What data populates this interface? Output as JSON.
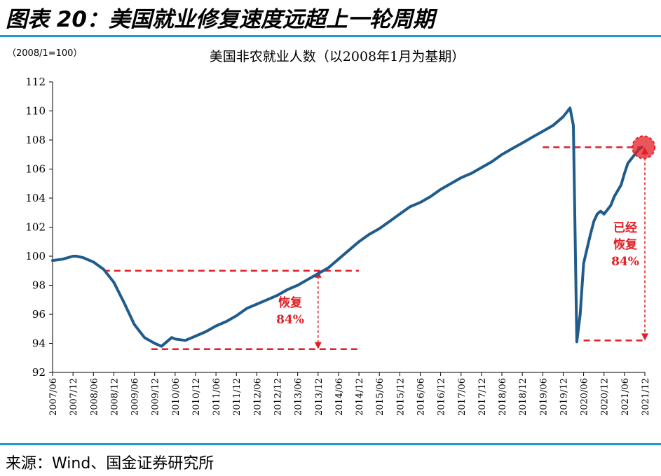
{
  "header": {
    "title": "图表 20：美国就业修复速度远超上一轮周期"
  },
  "colors": {
    "series": "#1f5c8c",
    "annotation": "#e11f26",
    "rule": "#1b9ad6"
  },
  "source": {
    "text": "来源：Wind、国金证券研究所"
  },
  "chart_data": {
    "type": "line",
    "title": "美国非农就业人数（以2008年1月为基期）",
    "unit_label": "（2008/1=100）",
    "xlabel": "",
    "ylabel": "",
    "ylim": [
      92,
      112
    ],
    "yticks": [
      92,
      94,
      96,
      98,
      100,
      102,
      104,
      106,
      108,
      110,
      112
    ],
    "xlim": [
      "2007/06",
      "2021/12"
    ],
    "xticks": [
      "2007/06",
      "2007/12",
      "2008/06",
      "2008/12",
      "2009/06",
      "2009/12",
      "2010/06",
      "2010/12",
      "2011/06",
      "2011/12",
      "2012/06",
      "2012/12",
      "2013/06",
      "2013/12",
      "2014/06",
      "2014/12",
      "2015/06",
      "2015/12",
      "2016/06",
      "2016/12",
      "2017/06",
      "2017/12",
      "2018/06",
      "2018/12",
      "2019/06",
      "2019/12",
      "2020/06",
      "2020/12",
      "2021/06",
      "2021/12"
    ],
    "grid": false,
    "series": [
      {
        "x": [
          "2007/06",
          "2007/09",
          "2007/12",
          "2008/01",
          "2008/03",
          "2008/06",
          "2008/09",
          "2008/12",
          "2009/03",
          "2009/06",
          "2009/09",
          "2009/12",
          "2010/02",
          "2010/05",
          "2010/06",
          "2010/09",
          "2010/12",
          "2011/03",
          "2011/06",
          "2011/09",
          "2011/12",
          "2012/03",
          "2012/06",
          "2012/09",
          "2012/12",
          "2013/03",
          "2013/06",
          "2013/09",
          "2013/12",
          "2014/03",
          "2014/06",
          "2014/09",
          "2014/12",
          "2015/03",
          "2015/06",
          "2015/09",
          "2015/12",
          "2016/03",
          "2016/06",
          "2016/09",
          "2016/12",
          "2017/03",
          "2017/06",
          "2017/09",
          "2017/12",
          "2018/03",
          "2018/06",
          "2018/09",
          "2018/12",
          "2019/03",
          "2019/06",
          "2019/09",
          "2019/12",
          "2020/02",
          "2020/03",
          "2020/04",
          "2020/05",
          "2020/06",
          "2020/07",
          "2020/08",
          "2020/09",
          "2020/10",
          "2020/11",
          "2020/12",
          "2021/01",
          "2021/02",
          "2021/03",
          "2021/04",
          "2021/05",
          "2021/06",
          "2021/07",
          "2021/08",
          "2021/09",
          "2021/10",
          "2021/11"
        ],
        "values": [
          99.7,
          99.8,
          100.0,
          100.0,
          99.9,
          99.6,
          99.1,
          98.2,
          96.8,
          95.3,
          94.4,
          94.0,
          93.8,
          94.4,
          94.3,
          94.2,
          94.5,
          94.8,
          95.2,
          95.5,
          95.9,
          96.4,
          96.7,
          97.0,
          97.3,
          97.7,
          98.0,
          98.4,
          98.8,
          99.2,
          99.8,
          100.4,
          101.0,
          101.5,
          101.9,
          102.4,
          102.9,
          103.4,
          103.7,
          104.1,
          104.6,
          105.0,
          105.4,
          105.7,
          106.1,
          106.5,
          107.0,
          107.4,
          107.8,
          108.2,
          108.6,
          109.0,
          109.6,
          110.2,
          109.0,
          94.1,
          96.0,
          99.5,
          100.5,
          101.5,
          102.4,
          102.9,
          103.1,
          102.9,
          103.2,
          103.5,
          104.1,
          104.5,
          104.9,
          105.7,
          106.4,
          106.7,
          107.0,
          107.3,
          107.5
        ]
      }
    ],
    "annotations": [
      {
        "text_line1": "恢复",
        "text_line2": "84%"
      },
      {
        "text_line1": "已经",
        "text_line2": "恢复",
        "text_line3": "84%"
      }
    ],
    "reference_lines": {
      "gfc": {
        "high": 99.0,
        "low": 93.6,
        "x_from": "2008/09",
        "x_to": "2014/12",
        "low_from": "2009/11",
        "arrow_at": "2013/12"
      },
      "covid": {
        "high": 107.5,
        "low": 94.2,
        "x_from": "2019/06",
        "x_to": "2021/12",
        "low_from": "2020/06",
        "arrow_at": "2021/12"
      }
    }
  }
}
